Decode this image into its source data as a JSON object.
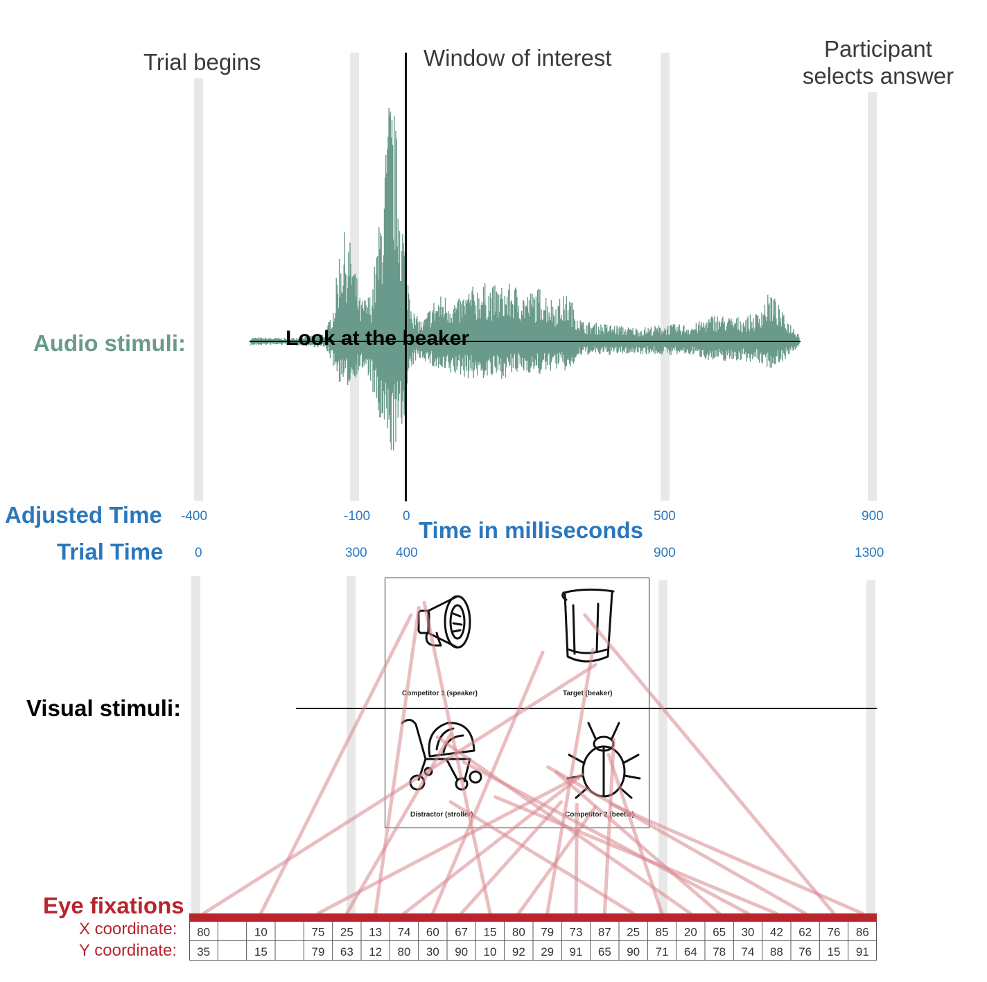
{
  "events": {
    "trial_begins": "Trial begins",
    "window_of_interest": "Window of interest",
    "participant_selects_line1": "Participant",
    "participant_selects_line2": "selects answer"
  },
  "rows": {
    "audio": "Audio stimuli:",
    "visual": "Visual stimuli:",
    "eye": "Eye fixations",
    "adjusted_time": "Adjusted Time",
    "trial_time": "Trial Time",
    "time_in_ms": "Time in milliseconds"
  },
  "audio_phrase": "Look at the beaker",
  "adjusted_ticks": [
    "-400",
    "-100",
    "0",
    "500",
    "900"
  ],
  "trial_ticks": [
    "0",
    "300",
    "400",
    "900",
    "1300"
  ],
  "visual_panel": {
    "competitor1": "Competitor  1 (speaker)",
    "target": "Target (beaker)",
    "distractor": "Distractor (stroller)",
    "competitor2": "Competitor 2 (beetle)"
  },
  "coordinates": {
    "x_label": "X coordinate:",
    "y_label": "Y coordinate:",
    "x": [
      "80",
      "",
      "10",
      "",
      "75",
      "25",
      "13",
      "74",
      "60",
      "67",
      "15",
      "80",
      "79",
      "73",
      "87",
      "25",
      "85",
      "20",
      "65",
      "30",
      "42",
      "62",
      "76",
      "86"
    ],
    "y": [
      "35",
      "",
      "15",
      "",
      "79",
      "63",
      "12",
      "80",
      "30",
      "90",
      "10",
      "92",
      "29",
      "91",
      "65",
      "90",
      "71",
      "64",
      "78",
      "74",
      "88",
      "76",
      "15",
      "91"
    ]
  },
  "colors": {
    "audio": "#6a9a8b",
    "time": "#2b77bd",
    "eye": "#b8252c",
    "fixation_line": "#d9868d",
    "time_bar": "#e8e8e8"
  }
}
